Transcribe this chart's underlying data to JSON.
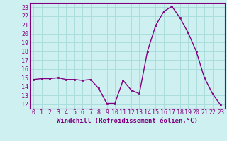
{
  "x": [
    0,
    1,
    2,
    3,
    4,
    5,
    6,
    7,
    8,
    9,
    10,
    11,
    12,
    13,
    14,
    15,
    16,
    17,
    18,
    19,
    20,
    21,
    22,
    23
  ],
  "y": [
    14.8,
    14.9,
    14.9,
    15.0,
    14.8,
    14.8,
    14.7,
    14.8,
    13.8,
    12.1,
    12.1,
    14.7,
    13.6,
    13.2,
    18.0,
    20.9,
    22.5,
    23.1,
    21.8,
    20.1,
    18.0,
    15.0,
    13.2,
    11.9
  ],
  "line_color": "#800080",
  "marker": "s",
  "marker_size": 1.8,
  "line_width": 1.0,
  "xlabel": "Windchill (Refroidissement éolien,°C)",
  "xlabel_fontsize": 6.5,
  "ylabel_ticks": [
    12,
    13,
    14,
    15,
    16,
    17,
    18,
    19,
    20,
    21,
    22,
    23
  ],
  "xlim": [
    -0.5,
    23.5
  ],
  "ylim": [
    11.5,
    23.5
  ],
  "background_color": "#cff0f0",
  "grid_color": "#aadddd",
  "tick_color": "#800080",
  "tick_fontsize": 6.0
}
